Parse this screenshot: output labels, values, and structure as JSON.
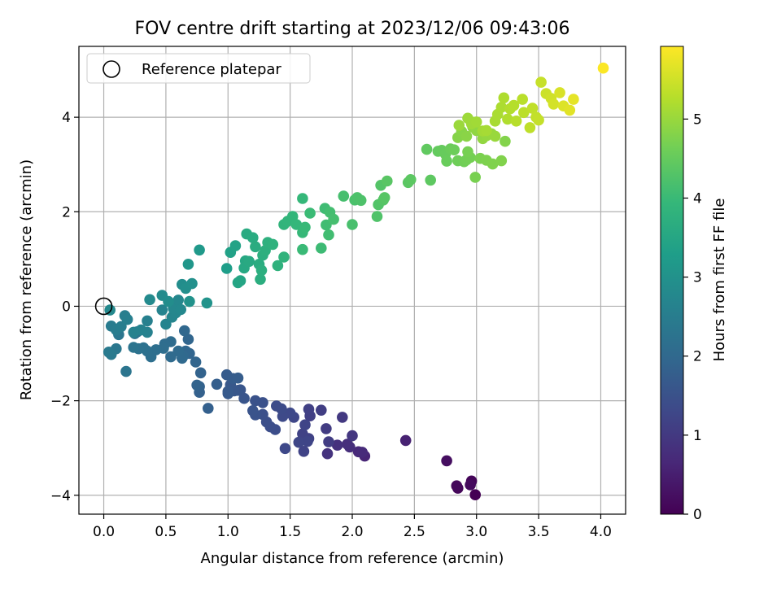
{
  "chart_data": {
    "type": "scatter",
    "title": "FOV centre drift starting at 2023/12/06 09:43:06",
    "xlabel": "Angular distance from reference (arcmin)",
    "ylabel": "Rotation from reference (arcmin)",
    "xlim": [
      -0.2,
      4.2
    ],
    "ylim": [
      -4.4,
      5.5
    ],
    "x_ticks": [
      0.0,
      0.5,
      1.0,
      1.5,
      2.0,
      2.5,
      3.0,
      3.5,
      4.0
    ],
    "x_tick_labels": [
      "0.0",
      "0.5",
      "1.0",
      "1.5",
      "2.0",
      "2.5",
      "3.0",
      "3.5",
      "4.0"
    ],
    "y_ticks": [
      -4,
      -2,
      0,
      2,
      4
    ],
    "y_tick_labels": [
      "−4",
      "−2",
      "0",
      "2",
      "4"
    ],
    "grid": true,
    "legend": {
      "placement": "top-left",
      "entries": [
        "Reference platepar"
      ]
    },
    "reference_point": {
      "x": 0.0,
      "y": 0.0
    },
    "colorbar": {
      "label": "Hours from first FF file",
      "range": [
        0,
        5.92
      ],
      "ticks": [
        0,
        1,
        2,
        3,
        4,
        5
      ],
      "tick_labels": [
        "0",
        "1",
        "2",
        "3",
        "4",
        "5"
      ],
      "colormap": "viridis"
    },
    "colormap_stops": [
      "#440154",
      "#482878",
      "#3e4989",
      "#31688e",
      "#26828e",
      "#1f9e89",
      "#35b779",
      "#6ece58",
      "#b5de2b",
      "#fde725"
    ],
    "series": [
      {
        "points": [
          [
            2.99,
            -3.99,
            0.0
          ],
          [
            2.96,
            -3.7,
            0.07
          ],
          [
            2.85,
            -3.85,
            0.1
          ],
          [
            2.84,
            -3.8,
            0.12
          ],
          [
            2.95,
            -3.78,
            0.16
          ],
          [
            2.76,
            -3.27,
            0.22
          ],
          [
            2.43,
            -2.84,
            0.55
          ],
          [
            2.1,
            -3.17,
            0.62
          ],
          [
            2.05,
            -3.08,
            0.68
          ],
          [
            2.08,
            -3.09,
            0.72
          ],
          [
            1.98,
            -2.98,
            0.78
          ],
          [
            1.96,
            -2.92,
            0.8
          ],
          [
            1.88,
            -2.94,
            0.84
          ],
          [
            1.8,
            -3.12,
            0.88
          ],
          [
            2.0,
            -2.74,
            0.95
          ],
          [
            1.92,
            -2.35,
            1.0
          ],
          [
            1.79,
            -2.59,
            1.05
          ],
          [
            1.81,
            -2.87,
            1.08
          ],
          [
            1.75,
            -2.2,
            1.1
          ],
          [
            1.66,
            -2.32,
            1.12
          ],
          [
            1.65,
            -2.18,
            1.14
          ],
          [
            1.65,
            -2.8,
            1.16
          ],
          [
            1.6,
            -2.7,
            1.18
          ],
          [
            1.61,
            -3.07,
            1.2
          ],
          [
            1.62,
            -2.51,
            1.22
          ],
          [
            1.64,
            -2.86,
            1.24
          ],
          [
            1.57,
            -2.88,
            1.25
          ],
          [
            1.53,
            -2.35,
            1.28
          ],
          [
            1.46,
            -3.01,
            1.3
          ],
          [
            1.5,
            -2.26,
            1.32
          ],
          [
            1.44,
            -2.33,
            1.34
          ],
          [
            1.43,
            -2.17,
            1.36
          ],
          [
            1.39,
            -2.11,
            1.38
          ],
          [
            1.38,
            -2.61,
            1.4
          ],
          [
            1.34,
            -2.55,
            1.42
          ],
          [
            1.31,
            -2.45,
            1.44
          ],
          [
            1.28,
            -2.29,
            1.46
          ],
          [
            1.28,
            -2.04,
            1.48
          ],
          [
            1.22,
            -2.0,
            1.5
          ],
          [
            1.22,
            -2.3,
            1.52
          ],
          [
            1.2,
            -2.21,
            1.54
          ],
          [
            1.13,
            -1.95,
            1.56
          ],
          [
            1.1,
            -1.77,
            1.58
          ],
          [
            1.08,
            -1.78,
            1.6
          ],
          [
            1.05,
            -1.79,
            1.62
          ],
          [
            1.02,
            -1.66,
            1.64
          ],
          [
            1.0,
            -1.85,
            1.66
          ],
          [
            1.0,
            -1.8,
            1.68
          ],
          [
            0.99,
            -1.45,
            1.7
          ],
          [
            1.04,
            -1.53,
            1.72
          ],
          [
            1.08,
            -1.52,
            1.74
          ],
          [
            0.91,
            -1.65,
            1.78
          ],
          [
            0.84,
            -2.16,
            1.8
          ],
          [
            0.77,
            -1.82,
            1.82
          ],
          [
            0.77,
            -1.7,
            1.84
          ],
          [
            0.78,
            -1.41,
            1.86
          ],
          [
            0.75,
            -1.67,
            1.88
          ],
          [
            0.74,
            -1.18,
            1.9
          ],
          [
            0.69,
            -1.0,
            1.92
          ],
          [
            0.68,
            -0.7,
            1.94
          ],
          [
            0.66,
            -0.95,
            1.96
          ],
          [
            0.65,
            -0.52,
            1.98
          ],
          [
            0.64,
            -1.05,
            2.0
          ],
          [
            0.63,
            -1.1,
            2.02
          ],
          [
            0.6,
            -0.95,
            2.04
          ],
          [
            0.54,
            -1.07,
            2.06
          ],
          [
            0.54,
            -0.75,
            2.08
          ],
          [
            0.49,
            -0.8,
            2.1
          ],
          [
            0.48,
            -0.89,
            2.12
          ],
          [
            0.42,
            -0.92,
            2.14
          ],
          [
            0.38,
            -1.07,
            2.16
          ],
          [
            0.35,
            -0.95,
            2.18
          ],
          [
            0.32,
            -0.88,
            2.2
          ],
          [
            0.28,
            -0.9,
            2.22
          ],
          [
            0.27,
            -0.54,
            2.24
          ],
          [
            0.25,
            -0.58,
            2.26
          ],
          [
            0.24,
            -0.87,
            2.28
          ],
          [
            0.18,
            -1.38,
            2.3
          ],
          [
            0.12,
            -0.6,
            2.33
          ],
          [
            0.1,
            -0.9,
            2.36
          ],
          [
            0.06,
            -1.02,
            2.4
          ],
          [
            0.04,
            -0.97,
            2.42
          ],
          [
            0.06,
            -0.42,
            2.45
          ],
          [
            0.1,
            -0.5,
            2.48
          ],
          [
            0.14,
            -0.43,
            2.5
          ],
          [
            0.17,
            -0.2,
            2.52
          ],
          [
            0.19,
            -0.28,
            2.55
          ],
          [
            0.35,
            -0.31,
            2.58
          ],
          [
            0.35,
            -0.55,
            2.6
          ],
          [
            0.24,
            -0.55,
            2.62
          ],
          [
            0.3,
            -0.5,
            2.64
          ],
          [
            0.47,
            -0.08,
            2.66
          ],
          [
            0.5,
            -0.38,
            2.68
          ],
          [
            0.55,
            -0.23,
            2.7
          ],
          [
            0.58,
            -0.14,
            2.72
          ],
          [
            0.56,
            -0.05,
            2.74
          ],
          [
            0.6,
            0.13,
            2.76
          ],
          [
            0.62,
            -0.07,
            2.78
          ],
          [
            0.05,
            -0.08,
            2.8
          ],
          [
            0.37,
            0.14,
            2.82
          ],
          [
            0.47,
            0.23,
            2.85
          ],
          [
            0.52,
            0.1,
            2.88
          ],
          [
            0.63,
            0.46,
            2.9
          ],
          [
            0.66,
            0.38,
            2.93
          ],
          [
            0.71,
            0.48,
            2.96
          ],
          [
            0.69,
            0.1,
            3.0
          ],
          [
            0.83,
            0.07,
            3.04
          ],
          [
            0.68,
            0.89,
            3.1
          ],
          [
            0.77,
            1.19,
            3.18
          ],
          [
            0.99,
            0.8,
            3.3
          ],
          [
            1.02,
            1.14,
            3.38
          ],
          [
            1.06,
            1.28,
            3.42
          ],
          [
            1.08,
            0.5,
            3.46
          ],
          [
            1.1,
            0.54,
            3.48
          ],
          [
            1.14,
            0.96,
            3.52
          ],
          [
            1.13,
            0.81,
            3.55
          ],
          [
            1.17,
            0.95,
            3.58
          ],
          [
            1.15,
            1.53,
            3.6
          ],
          [
            1.2,
            1.45,
            3.62
          ],
          [
            1.22,
            1.26,
            3.64
          ],
          [
            1.25,
            0.89,
            3.66
          ],
          [
            1.26,
            0.57,
            3.68
          ],
          [
            1.27,
            0.76,
            3.7
          ],
          [
            1.28,
            1.08,
            3.72
          ],
          [
            1.3,
            1.18,
            3.74
          ],
          [
            1.32,
            1.35,
            3.76
          ],
          [
            1.36,
            1.31,
            3.78
          ],
          [
            1.4,
            0.86,
            3.8
          ],
          [
            1.45,
            1.04,
            3.82
          ],
          [
            1.45,
            1.73,
            3.85
          ],
          [
            1.48,
            1.8,
            3.88
          ],
          [
            1.52,
            1.9,
            3.9
          ],
          [
            1.55,
            1.73,
            3.92
          ],
          [
            1.6,
            2.28,
            3.94
          ],
          [
            1.6,
            1.56,
            3.96
          ],
          [
            1.62,
            1.67,
            3.98
          ],
          [
            1.6,
            1.2,
            4.0
          ],
          [
            1.66,
            1.97,
            4.02
          ],
          [
            1.75,
            1.23,
            4.04
          ],
          [
            1.78,
            2.07,
            4.06
          ],
          [
            1.79,
            1.72,
            4.08
          ],
          [
            1.81,
            1.51,
            4.1
          ],
          [
            1.82,
            1.99,
            4.12
          ],
          [
            1.85,
            1.84,
            4.14
          ],
          [
            1.93,
            2.33,
            4.16
          ],
          [
            2.0,
            1.73,
            4.18
          ],
          [
            2.02,
            2.25,
            4.2
          ],
          [
            2.04,
            2.3,
            4.22
          ],
          [
            2.07,
            2.24,
            4.24
          ],
          [
            2.2,
            1.9,
            4.26
          ],
          [
            2.21,
            2.15,
            4.28
          ],
          [
            2.23,
            2.56,
            4.3
          ],
          [
            2.25,
            2.25,
            4.32
          ],
          [
            2.26,
            2.3,
            4.34
          ],
          [
            2.28,
            2.65,
            4.36
          ],
          [
            2.45,
            2.62,
            4.38
          ],
          [
            2.47,
            2.68,
            4.4
          ],
          [
            2.63,
            2.67,
            4.42
          ],
          [
            2.6,
            3.32,
            4.45
          ],
          [
            2.69,
            3.28,
            4.48
          ],
          [
            2.72,
            3.3,
            4.5
          ],
          [
            2.75,
            3.22,
            4.52
          ],
          [
            2.76,
            3.07,
            4.54
          ],
          [
            2.79,
            3.33,
            4.56
          ],
          [
            2.82,
            3.31,
            4.58
          ],
          [
            2.85,
            3.08,
            4.6
          ],
          [
            2.9,
            3.06,
            4.62
          ],
          [
            2.92,
            3.1,
            4.64
          ],
          [
            2.95,
            3.15,
            4.66
          ],
          [
            2.93,
            3.27,
            4.68
          ],
          [
            2.99,
            2.73,
            4.7
          ],
          [
            3.03,
            3.13,
            4.72
          ],
          [
            3.08,
            3.09,
            4.74
          ],
          [
            3.13,
            3.01,
            4.76
          ],
          [
            3.2,
            3.08,
            4.78
          ],
          [
            3.23,
            3.49,
            4.8
          ],
          [
            2.85,
            3.57,
            4.82
          ],
          [
            2.88,
            3.7,
            4.84
          ],
          [
            2.92,
            3.6,
            4.86
          ],
          [
            2.96,
            3.89,
            4.88
          ],
          [
            2.97,
            3.79,
            4.9
          ],
          [
            3.0,
            3.72,
            4.92
          ],
          [
            3.05,
            3.55,
            4.94
          ],
          [
            3.08,
            3.61,
            4.96
          ],
          [
            3.12,
            3.65,
            4.98
          ],
          [
            3.15,
            3.6,
            5.0
          ],
          [
            2.86,
            3.83,
            5.02
          ],
          [
            2.93,
            3.98,
            5.04
          ],
          [
            2.96,
            3.86,
            5.06
          ],
          [
            3.0,
            3.9,
            5.08
          ],
          [
            3.05,
            3.71,
            5.1
          ],
          [
            3.08,
            3.72,
            5.12
          ],
          [
            3.15,
            3.92,
            5.14
          ],
          [
            3.17,
            4.06,
            5.16
          ],
          [
            3.2,
            4.21,
            5.18
          ],
          [
            3.22,
            4.41,
            5.2
          ],
          [
            3.25,
            3.96,
            5.22
          ],
          [
            3.27,
            4.18,
            5.24
          ],
          [
            3.3,
            4.25,
            5.26
          ],
          [
            3.32,
            3.92,
            5.28
          ],
          [
            3.37,
            4.38,
            5.3
          ],
          [
            3.38,
            4.1,
            5.32
          ],
          [
            3.43,
            3.78,
            5.34
          ],
          [
            3.45,
            4.19,
            5.36
          ],
          [
            3.48,
            4.0,
            5.38
          ],
          [
            3.5,
            3.94,
            5.4
          ],
          [
            3.52,
            4.74,
            5.42
          ],
          [
            3.56,
            4.5,
            5.46
          ],
          [
            3.6,
            4.4,
            5.5
          ],
          [
            3.62,
            4.28,
            5.54
          ],
          [
            3.67,
            4.52,
            5.58
          ],
          [
            3.7,
            4.24,
            5.62
          ],
          [
            3.75,
            4.15,
            5.66
          ],
          [
            3.78,
            4.38,
            5.7
          ],
          [
            4.02,
            5.04,
            5.9
          ]
        ]
      }
    ]
  }
}
